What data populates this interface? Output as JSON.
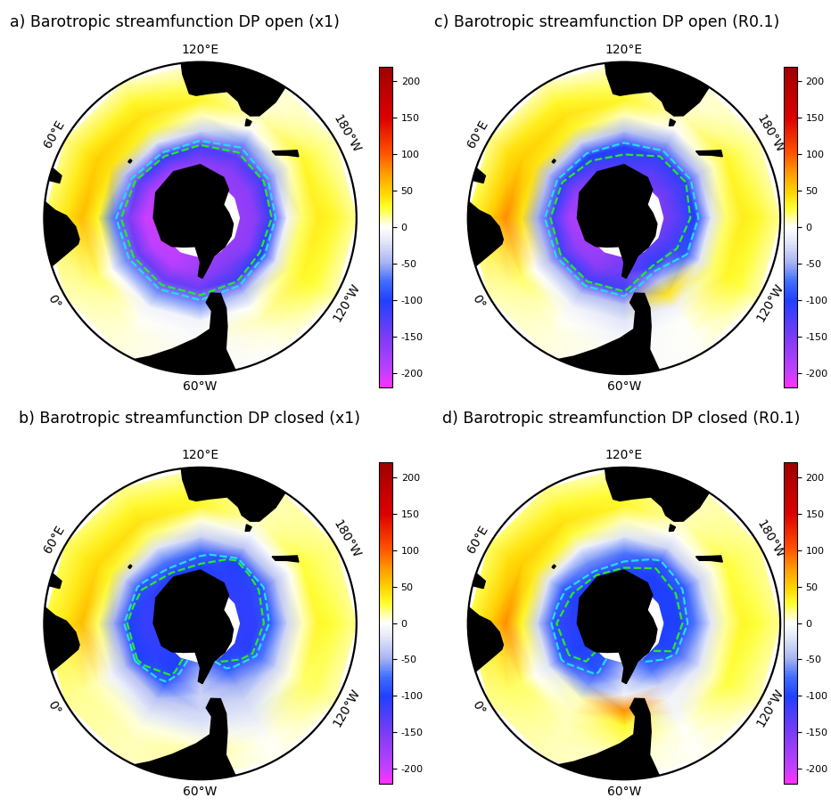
{
  "chart_data": [
    {
      "type": "polar_map",
      "title": "a) Barotropic streamfunction DP open (x1)",
      "lat_range": [
        -90,
        -20
      ],
      "lon": [
        0,
        30,
        60,
        90,
        120,
        150,
        180,
        210,
        240,
        270,
        300,
        330
      ],
      "lat": [
        -72,
        -65,
        -58,
        -51,
        -44,
        -37,
        -30,
        -20
      ],
      "cells": [
        [
          -200,
          -200,
          -190,
          -180,
          -175,
          -170,
          -170,
          -170,
          -170,
          -170,
          -180,
          -195
        ],
        [
          -195,
          -200,
          -185,
          -170,
          -160,
          -160,
          -160,
          -160,
          -160,
          -150,
          -170,
          -190
        ],
        [
          -140,
          -150,
          -130,
          -110,
          -120,
          -130,
          -120,
          -110,
          -100,
          -120,
          -140,
          -140
        ],
        [
          -60,
          -70,
          -40,
          -20,
          -30,
          -60,
          -40,
          -10,
          -20,
          -40,
          -60,
          -60
        ],
        [
          0,
          30,
          40,
          30,
          10,
          0,
          10,
          20,
          20,
          0,
          -10,
          -10
        ],
        [
          20,
          60,
          50,
          40,
          30,
          10,
          30,
          35,
          30,
          10,
          -5,
          0
        ],
        [
          15,
          40,
          35,
          30,
          20,
          5,
          20,
          30,
          25,
          5,
          -5,
          5
        ],
        [
          10,
          20,
          15,
          10,
          5,
          5,
          10,
          15,
          10,
          0,
          -5,
          5
        ]
      ],
      "contours": [
        {
          "value": -85,
          "color": "#22ddee"
        },
        {
          "value": -110,
          "color": "#22ee22"
        }
      ],
      "colorbar": {
        "range": [
          -220,
          220
        ],
        "ticks": [
          -200,
          -150,
          -100,
          -50,
          0,
          50,
          100,
          150,
          200
        ]
      },
      "lon_ticks": [
        {
          "value": 120,
          "label": "120°E"
        },
        {
          "value": 60,
          "label": "60°E"
        },
        {
          "value": 180,
          "label": "180°W"
        },
        {
          "value": 0,
          "label": "0°"
        },
        {
          "value": 240,
          "label": "120°W"
        },
        {
          "value": 300,
          "label": "60°W"
        }
      ]
    },
    {
      "type": "polar_map",
      "title": "b) Barotropic streamfunction DP closed (x1)",
      "lat_range": [
        -90,
        -20
      ],
      "lon": [
        0,
        30,
        60,
        90,
        120,
        150,
        180,
        210,
        240,
        270,
        300,
        330
      ],
      "lat": [
        -72,
        -65,
        -58,
        -51,
        -44,
        -37,
        -30,
        -20
      ],
      "cells": [
        [
          -110,
          -110,
          -110,
          -110,
          -110,
          -110,
          -110,
          -110,
          -110,
          -100,
          -60,
          -100
        ],
        [
          -110,
          -115,
          -110,
          -100,
          -100,
          -105,
          -110,
          -110,
          -105,
          -80,
          -40,
          -100
        ],
        [
          -100,
          -100,
          -90,
          -70,
          -80,
          -100,
          -90,
          -80,
          -70,
          -50,
          -30,
          -80
        ],
        [
          -40,
          -50,
          -30,
          -20,
          -30,
          -40,
          -40,
          -30,
          -30,
          -30,
          -30,
          -40
        ],
        [
          -10,
          20,
          30,
          20,
          5,
          -5,
          0,
          10,
          5,
          -20,
          -20,
          -20
        ],
        [
          10,
          60,
          45,
          40,
          30,
          10,
          25,
          30,
          20,
          -10,
          5,
          5
        ],
        [
          15,
          40,
          35,
          30,
          25,
          10,
          20,
          25,
          20,
          0,
          15,
          10
        ],
        [
          15,
          25,
          20,
          15,
          10,
          10,
          15,
          15,
          10,
          0,
          10,
          10
        ]
      ],
      "contours": [
        {
          "value": -85,
          "color": "#22ddee"
        },
        {
          "value": -95,
          "color": "#22ee22"
        }
      ],
      "colorbar": {
        "range": [
          -220,
          220
        ],
        "ticks": [
          -200,
          -150,
          -100,
          -50,
          0,
          50,
          100,
          150,
          200
        ]
      },
      "lon_ticks": [
        {
          "value": 120,
          "label": "120°E"
        },
        {
          "value": 60,
          "label": "60°E"
        },
        {
          "value": 180,
          "label": "180°W"
        },
        {
          "value": 0,
          "label": "0°"
        },
        {
          "value": 240,
          "label": "120°W"
        },
        {
          "value": 300,
          "label": "60°W"
        }
      ]
    },
    {
      "type": "polar_map",
      "title": "c) Barotropic streamfunction DP open (R0.1)",
      "lat_range": [
        -90,
        -20
      ],
      "lon": [
        0,
        30,
        60,
        90,
        120,
        150,
        180,
        210,
        240,
        270,
        300,
        330
      ],
      "lat": [
        -72,
        -65,
        -58,
        -51,
        -44,
        -37,
        -30,
        -20
      ],
      "cells": [
        [
          -180,
          -190,
          -170,
          -150,
          -140,
          -140,
          -150,
          -150,
          -140,
          -130,
          -150,
          -170
        ],
        [
          -170,
          -180,
          -160,
          -130,
          -120,
          -130,
          -130,
          -130,
          -120,
          -110,
          -140,
          -160
        ],
        [
          -120,
          -120,
          -110,
          -100,
          -100,
          -110,
          -110,
          -100,
          -90,
          -40,
          -120,
          -120
        ],
        [
          -40,
          -50,
          -40,
          -30,
          -40,
          -50,
          -40,
          -20,
          -20,
          40,
          -40,
          -40
        ],
        [
          0,
          40,
          40,
          30,
          10,
          0,
          10,
          20,
          20,
          -10,
          -20,
          -10
        ],
        [
          20,
          80,
          50,
          40,
          30,
          10,
          30,
          35,
          30,
          0,
          -10,
          0
        ],
        [
          15,
          50,
          40,
          30,
          20,
          5,
          20,
          30,
          25,
          0,
          -5,
          5
        ],
        [
          10,
          25,
          15,
          10,
          5,
          5,
          10,
          15,
          10,
          0,
          -5,
          5
        ]
      ],
      "contours": [
        {
          "value": -85,
          "color": "#22ddee"
        },
        {
          "value": -110,
          "color": "#22ee22"
        }
      ],
      "colorbar": {
        "range": [
          -220,
          220
        ],
        "ticks": [
          -200,
          -150,
          -100,
          -50,
          0,
          50,
          100,
          150,
          200
        ]
      },
      "lon_ticks": [
        {
          "value": 120,
          "label": "120°E"
        },
        {
          "value": 60,
          "label": "60°E"
        },
        {
          "value": 180,
          "label": "180°W"
        },
        {
          "value": 0,
          "label": "0°"
        },
        {
          "value": 240,
          "label": "120°W"
        },
        {
          "value": 300,
          "label": "60°W"
        }
      ]
    },
    {
      "type": "polar_map",
      "title": "d) Barotropic streamfunction DP closed (R0.1)",
      "lat_range": [
        -90,
        -20
      ],
      "lon": [
        0,
        30,
        60,
        90,
        120,
        150,
        180,
        210,
        240,
        270,
        300,
        330
      ],
      "lat": [
        -72,
        -65,
        -58,
        -51,
        -44,
        -37,
        -30,
        -20
      ],
      "cells": [
        [
          -100,
          -100,
          -100,
          -100,
          -100,
          -100,
          -100,
          -100,
          -100,
          -90,
          -50,
          -90
        ],
        [
          -100,
          -110,
          -100,
          -95,
          -95,
          -100,
          -100,
          -100,
          -95,
          -70,
          -30,
          -90
        ],
        [
          -90,
          -90,
          -80,
          -60,
          -70,
          -90,
          -80,
          -70,
          -60,
          -30,
          -10,
          -60
        ],
        [
          -20,
          -30,
          -20,
          -10,
          -20,
          -30,
          -30,
          -20,
          -20,
          -10,
          80,
          10
        ],
        [
          0,
          30,
          35,
          25,
          10,
          0,
          5,
          15,
          10,
          -10,
          30,
          10
        ],
        [
          20,
          80,
          50,
          40,
          30,
          10,
          25,
          30,
          25,
          0,
          20,
          10
        ],
        [
          20,
          50,
          40,
          30,
          25,
          10,
          20,
          25,
          20,
          0,
          10,
          10
        ],
        [
          15,
          25,
          20,
          15,
          10,
          10,
          15,
          15,
          10,
          0,
          5,
          10
        ]
      ],
      "contours": [
        {
          "value": -85,
          "color": "#22ddee"
        },
        {
          "value": -95,
          "color": "#22ee22"
        }
      ],
      "colorbar": {
        "range": [
          -220,
          220
        ],
        "ticks": [
          -200,
          -150,
          -100,
          -50,
          0,
          50,
          100,
          150,
          200
        ]
      },
      "lon_ticks": [
        {
          "value": 120,
          "label": "120°E"
        },
        {
          "value": 60,
          "label": "60°E"
        },
        {
          "value": 180,
          "label": "180°W"
        },
        {
          "value": 0,
          "label": "0°"
        },
        {
          "value": 240,
          "label": "120°W"
        },
        {
          "value": 300,
          "label": "60°W"
        }
      ]
    }
  ]
}
